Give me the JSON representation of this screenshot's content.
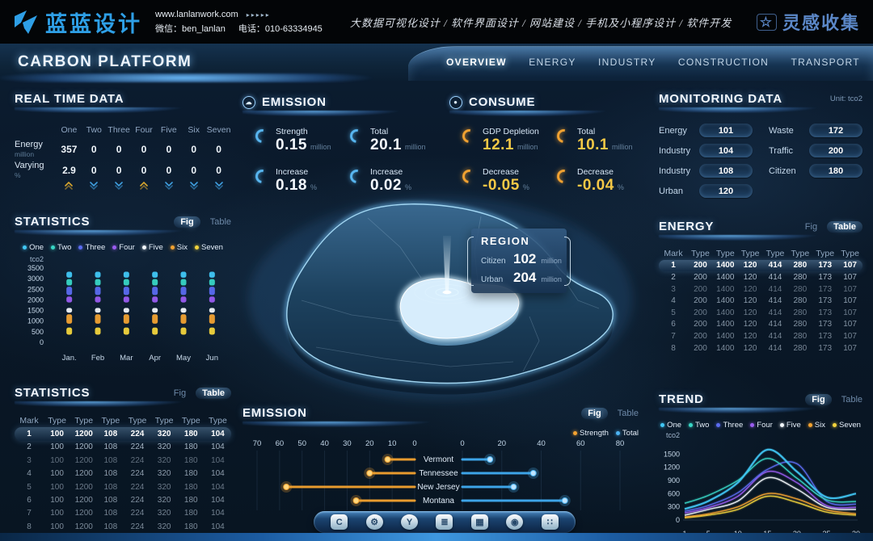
{
  "colors": {
    "accent_blue": "#4db4f2",
    "accent_orange": "#f2a231",
    "accent_yellow": "#f5c846",
    "brand_blue": "#2e9fe6",
    "bg_dark": "#0a1826"
  },
  "header": {
    "logo_text": "蓝蓝设计",
    "website": "www.lanlanwork.com",
    "website_arrows": "▸▸▸▸▸",
    "wechat": "微信：ben_lanlan",
    "phone": "电话：010-63334945",
    "services": "大数据可视化设计 / 软件界面设计 / 网站建设 / 手机及小程序设计 / 软件开发",
    "collect_icon": "☆",
    "collect_logo": "灵感收集"
  },
  "nav": {
    "title": "CARBON PLATFORM",
    "items": [
      "OVERVIEW",
      "ENERGY",
      "INDUSTRY",
      "CONSTRUCTION",
      "TRANSPORT"
    ],
    "active_index": 0
  },
  "realtime": {
    "title": "REAL TIME DATA",
    "columns": [
      "One",
      "Two",
      "Three",
      "Four",
      "Five",
      "Six",
      "Seven"
    ],
    "rows": [
      {
        "label": "Energy",
        "unit": "million",
        "values": [
          "357",
          "0",
          "0",
          "0",
          "0",
          "0",
          "0"
        ]
      },
      {
        "label": "Varying",
        "unit": "%",
        "values": [
          "2.9",
          "0",
          "0",
          "0",
          "0",
          "0",
          "0"
        ]
      }
    ],
    "trends": [
      "up",
      "down",
      "down",
      "up",
      "down",
      "down",
      "down"
    ]
  },
  "emission_stats": {
    "title": "EMISSION",
    "icon": "☁",
    "stats": [
      {
        "label": "Strength",
        "value": "0.15",
        "unit": "million"
      },
      {
        "label": "Total",
        "value": "20.1",
        "unit": "million"
      },
      {
        "label": "Increase",
        "value": "0.18",
        "unit": "%"
      },
      {
        "label": "Increase",
        "value": "0.02",
        "unit": "%"
      }
    ]
  },
  "consume_stats": {
    "title": "CONSUME",
    "icon": "●",
    "stats": [
      {
        "label": "GDP Depletion",
        "value": "12.1",
        "unit": "million"
      },
      {
        "label": "Total",
        "value": "10.1",
        "unit": "million"
      },
      {
        "label": "Decrease",
        "value": "-0.05",
        "unit": "%"
      },
      {
        "label": "Decrease",
        "value": "-0.04",
        "unit": "%"
      }
    ]
  },
  "monitoring": {
    "title": "MONITORING DATA",
    "unit_label": "Unit: tco2",
    "left": [
      {
        "label": "Energy",
        "value": "101"
      },
      {
        "label": "Industry",
        "value": "104"
      },
      {
        "label": "Industry",
        "value": "108"
      },
      {
        "label": "Urban",
        "value": "120"
      }
    ],
    "right": [
      {
        "label": "Waste",
        "value": "172"
      },
      {
        "label": "Traffic",
        "value": "200"
      },
      {
        "label": "Citizen",
        "value": "180"
      }
    ]
  },
  "region": {
    "title": "REGION",
    "rows": [
      {
        "label": "Citizen",
        "value": "102",
        "unit": "million"
      },
      {
        "label": "Urban",
        "value": "204",
        "unit": "million"
      }
    ]
  },
  "dock_icons": [
    {
      "name": "home-c-icon",
      "glyph": "C",
      "shape": "square"
    },
    {
      "name": "gear-icon",
      "glyph": "⚙",
      "shape": "round"
    },
    {
      "name": "y-badge-icon",
      "glyph": "Y",
      "shape": "round"
    },
    {
      "name": "charging-station-icon",
      "glyph": "≣",
      "shape": "square"
    },
    {
      "name": "monitor-chart-icon",
      "glyph": "▦",
      "shape": "square"
    },
    {
      "name": "nut-icon",
      "glyph": "◉",
      "shape": "round"
    },
    {
      "name": "app-grid-icon",
      "glyph": "∷",
      "shape": "square"
    }
  ],
  "chart_data": [
    {
      "id": "statistics-fig",
      "type": "bar",
      "title": "STATISTICS",
      "toggle": [
        "Fig",
        "Table"
      ],
      "active_toggle": "Fig",
      "ylabel": "tco2",
      "ylim": [
        0,
        3500
      ],
      "yticks": [
        3500,
        3000,
        2500,
        2000,
        1500,
        1000,
        500,
        0
      ],
      "categories": [
        "Jan.",
        "Feb",
        "Mar",
        "Apr",
        "May",
        "Jun"
      ],
      "legend": [
        {
          "name": "One",
          "color": "#41c7f5"
        },
        {
          "name": "Two",
          "color": "#38d6c5"
        },
        {
          "name": "Three",
          "color": "#5b6cf0"
        },
        {
          "name": "Four",
          "color": "#9a5cf0"
        },
        {
          "name": "Five",
          "color": "#f2f7fb"
        },
        {
          "name": "Six",
          "color": "#f2a231"
        },
        {
          "name": "Seven",
          "color": "#f2d43c"
        }
      ],
      "segments": [
        {
          "name": "One",
          "color": "#41c7f5",
          "from": 3050,
          "to": 3330
        },
        {
          "name": "Two",
          "color": "#38d6c5",
          "from": 2680,
          "to": 2980
        },
        {
          "name": "Three",
          "color": "#5b6cf0",
          "from": 2230,
          "to": 2620
        },
        {
          "name": "Four",
          "color": "#9a5cf0",
          "from": 1880,
          "to": 2160
        },
        {
          "name": "Five",
          "color": "#f2f7fb",
          "from": 1400,
          "to": 1620
        },
        {
          "name": "Six",
          "color": "#f2a231",
          "from": 880,
          "to": 1320
        },
        {
          "name": "Seven",
          "color": "#f2d43c",
          "from": 360,
          "to": 700
        }
      ]
    },
    {
      "id": "statistics-table",
      "type": "table",
      "title": "STATISTICS",
      "toggle": [
        "Fig",
        "Table"
      ],
      "active_toggle": "Table",
      "headers": [
        "Mark",
        "Type",
        "Type",
        "Type",
        "Type",
        "Type",
        "Type",
        "Type"
      ],
      "rows": [
        [
          "1",
          "100",
          "1200",
          "108",
          "224",
          "320",
          "180",
          "104"
        ],
        [
          "2",
          "100",
          "1200",
          "108",
          "224",
          "320",
          "180",
          "104"
        ],
        [
          "3",
          "100",
          "1200",
          "108",
          "224",
          "320",
          "180",
          "104"
        ],
        [
          "4",
          "100",
          "1200",
          "108",
          "224",
          "320",
          "180",
          "104"
        ],
        [
          "5",
          "100",
          "1200",
          "108",
          "224",
          "320",
          "180",
          "104"
        ],
        [
          "6",
          "100",
          "1200",
          "108",
          "224",
          "320",
          "180",
          "104"
        ],
        [
          "7",
          "100",
          "1200",
          "108",
          "224",
          "320",
          "180",
          "104"
        ],
        [
          "8",
          "100",
          "1200",
          "108",
          "224",
          "320",
          "180",
          "104"
        ]
      ]
    },
    {
      "id": "energy-table",
      "type": "table",
      "title": "ENERGY",
      "toggle": [
        "Fig",
        "Table"
      ],
      "active_toggle": "Table",
      "headers": [
        "Mark",
        "Type",
        "Type",
        "Type",
        "Type",
        "Type",
        "Type",
        "Type"
      ],
      "rows": [
        [
          "1",
          "200",
          "1400",
          "120",
          "414",
          "280",
          "173",
          "107"
        ],
        [
          "2",
          "200",
          "1400",
          "120",
          "414",
          "280",
          "173",
          "107"
        ],
        [
          "3",
          "200",
          "1400",
          "120",
          "414",
          "280",
          "173",
          "107"
        ],
        [
          "4",
          "200",
          "1400",
          "120",
          "414",
          "280",
          "173",
          "107"
        ],
        [
          "5",
          "200",
          "1400",
          "120",
          "414",
          "280",
          "173",
          "107"
        ],
        [
          "6",
          "200",
          "1400",
          "120",
          "414",
          "280",
          "173",
          "107"
        ],
        [
          "7",
          "200",
          "1400",
          "120",
          "414",
          "280",
          "173",
          "107"
        ],
        [
          "8",
          "200",
          "1400",
          "120",
          "414",
          "280",
          "173",
          "107"
        ]
      ]
    },
    {
      "id": "emission-compare",
      "type": "bar",
      "title": "EMISSION",
      "toggle": [
        "Fig",
        "Table"
      ],
      "active_toggle": "Fig",
      "legend": [
        {
          "name": "Strength",
          "color": "#f2a231"
        },
        {
          "name": "Total",
          "color": "#4db4f2"
        }
      ],
      "left_axis_ticks": [
        70,
        60,
        50,
        40,
        30,
        20,
        10,
        0
      ],
      "right_axis_ticks": [
        0,
        20,
        40,
        60,
        80
      ],
      "categories": [
        "Vermont",
        "Tennessee",
        "New Jersey",
        "Montana"
      ],
      "series": [
        {
          "name": "Strength",
          "color": "#f2a231",
          "values": [
            12,
            20,
            57,
            26
          ]
        },
        {
          "name": "Total",
          "color": "#4db4f2",
          "values": [
            14,
            36,
            26,
            52
          ]
        }
      ]
    },
    {
      "id": "trend",
      "type": "line",
      "title": "TREND",
      "toggle": [
        "Fig",
        "Table"
      ],
      "active_toggle": "Fig",
      "ylabel": "tco2",
      "ylim": [
        0,
        1800
      ],
      "yticks": [
        1500,
        1200,
        900,
        600,
        300,
        0
      ],
      "x": [
        1,
        5,
        10,
        15,
        20,
        25,
        30
      ],
      "xticks": [
        1,
        5,
        10,
        15,
        20,
        25,
        30
      ],
      "legend": [
        {
          "name": "One",
          "color": "#41c7f5"
        },
        {
          "name": "Two",
          "color": "#38d6c5"
        },
        {
          "name": "Three",
          "color": "#5b6cf0"
        },
        {
          "name": "Four",
          "color": "#9a5cf0"
        },
        {
          "name": "Five",
          "color": "#f2f7fb"
        },
        {
          "name": "Six",
          "color": "#f2a231"
        },
        {
          "name": "Seven",
          "color": "#f2d43c"
        }
      ],
      "series": [
        {
          "name": "One",
          "color": "#41c7f5",
          "values": [
            250,
            430,
            850,
            1600,
            1100,
            520,
            600
          ]
        },
        {
          "name": "Two",
          "color": "#38d6c5",
          "values": [
            380,
            560,
            900,
            1400,
            950,
            460,
            420
          ]
        },
        {
          "name": "Three",
          "color": "#5b6cf0",
          "values": [
            200,
            330,
            620,
            1150,
            1280,
            430,
            360
          ]
        },
        {
          "name": "Four",
          "color": "#9a5cf0",
          "values": [
            160,
            280,
            540,
            1100,
            850,
            330,
            290
          ]
        },
        {
          "name": "Five",
          "color": "#f2f7fb",
          "values": [
            110,
            240,
            430,
            960,
            700,
            290,
            240
          ]
        },
        {
          "name": "Six",
          "color": "#f2a231",
          "values": [
            70,
            140,
            300,
            600,
            480,
            230,
            140
          ]
        },
        {
          "name": "Seven",
          "color": "#f2d43c",
          "values": [
            50,
            110,
            240,
            540,
            400,
            180,
            110
          ]
        }
      ]
    }
  ]
}
